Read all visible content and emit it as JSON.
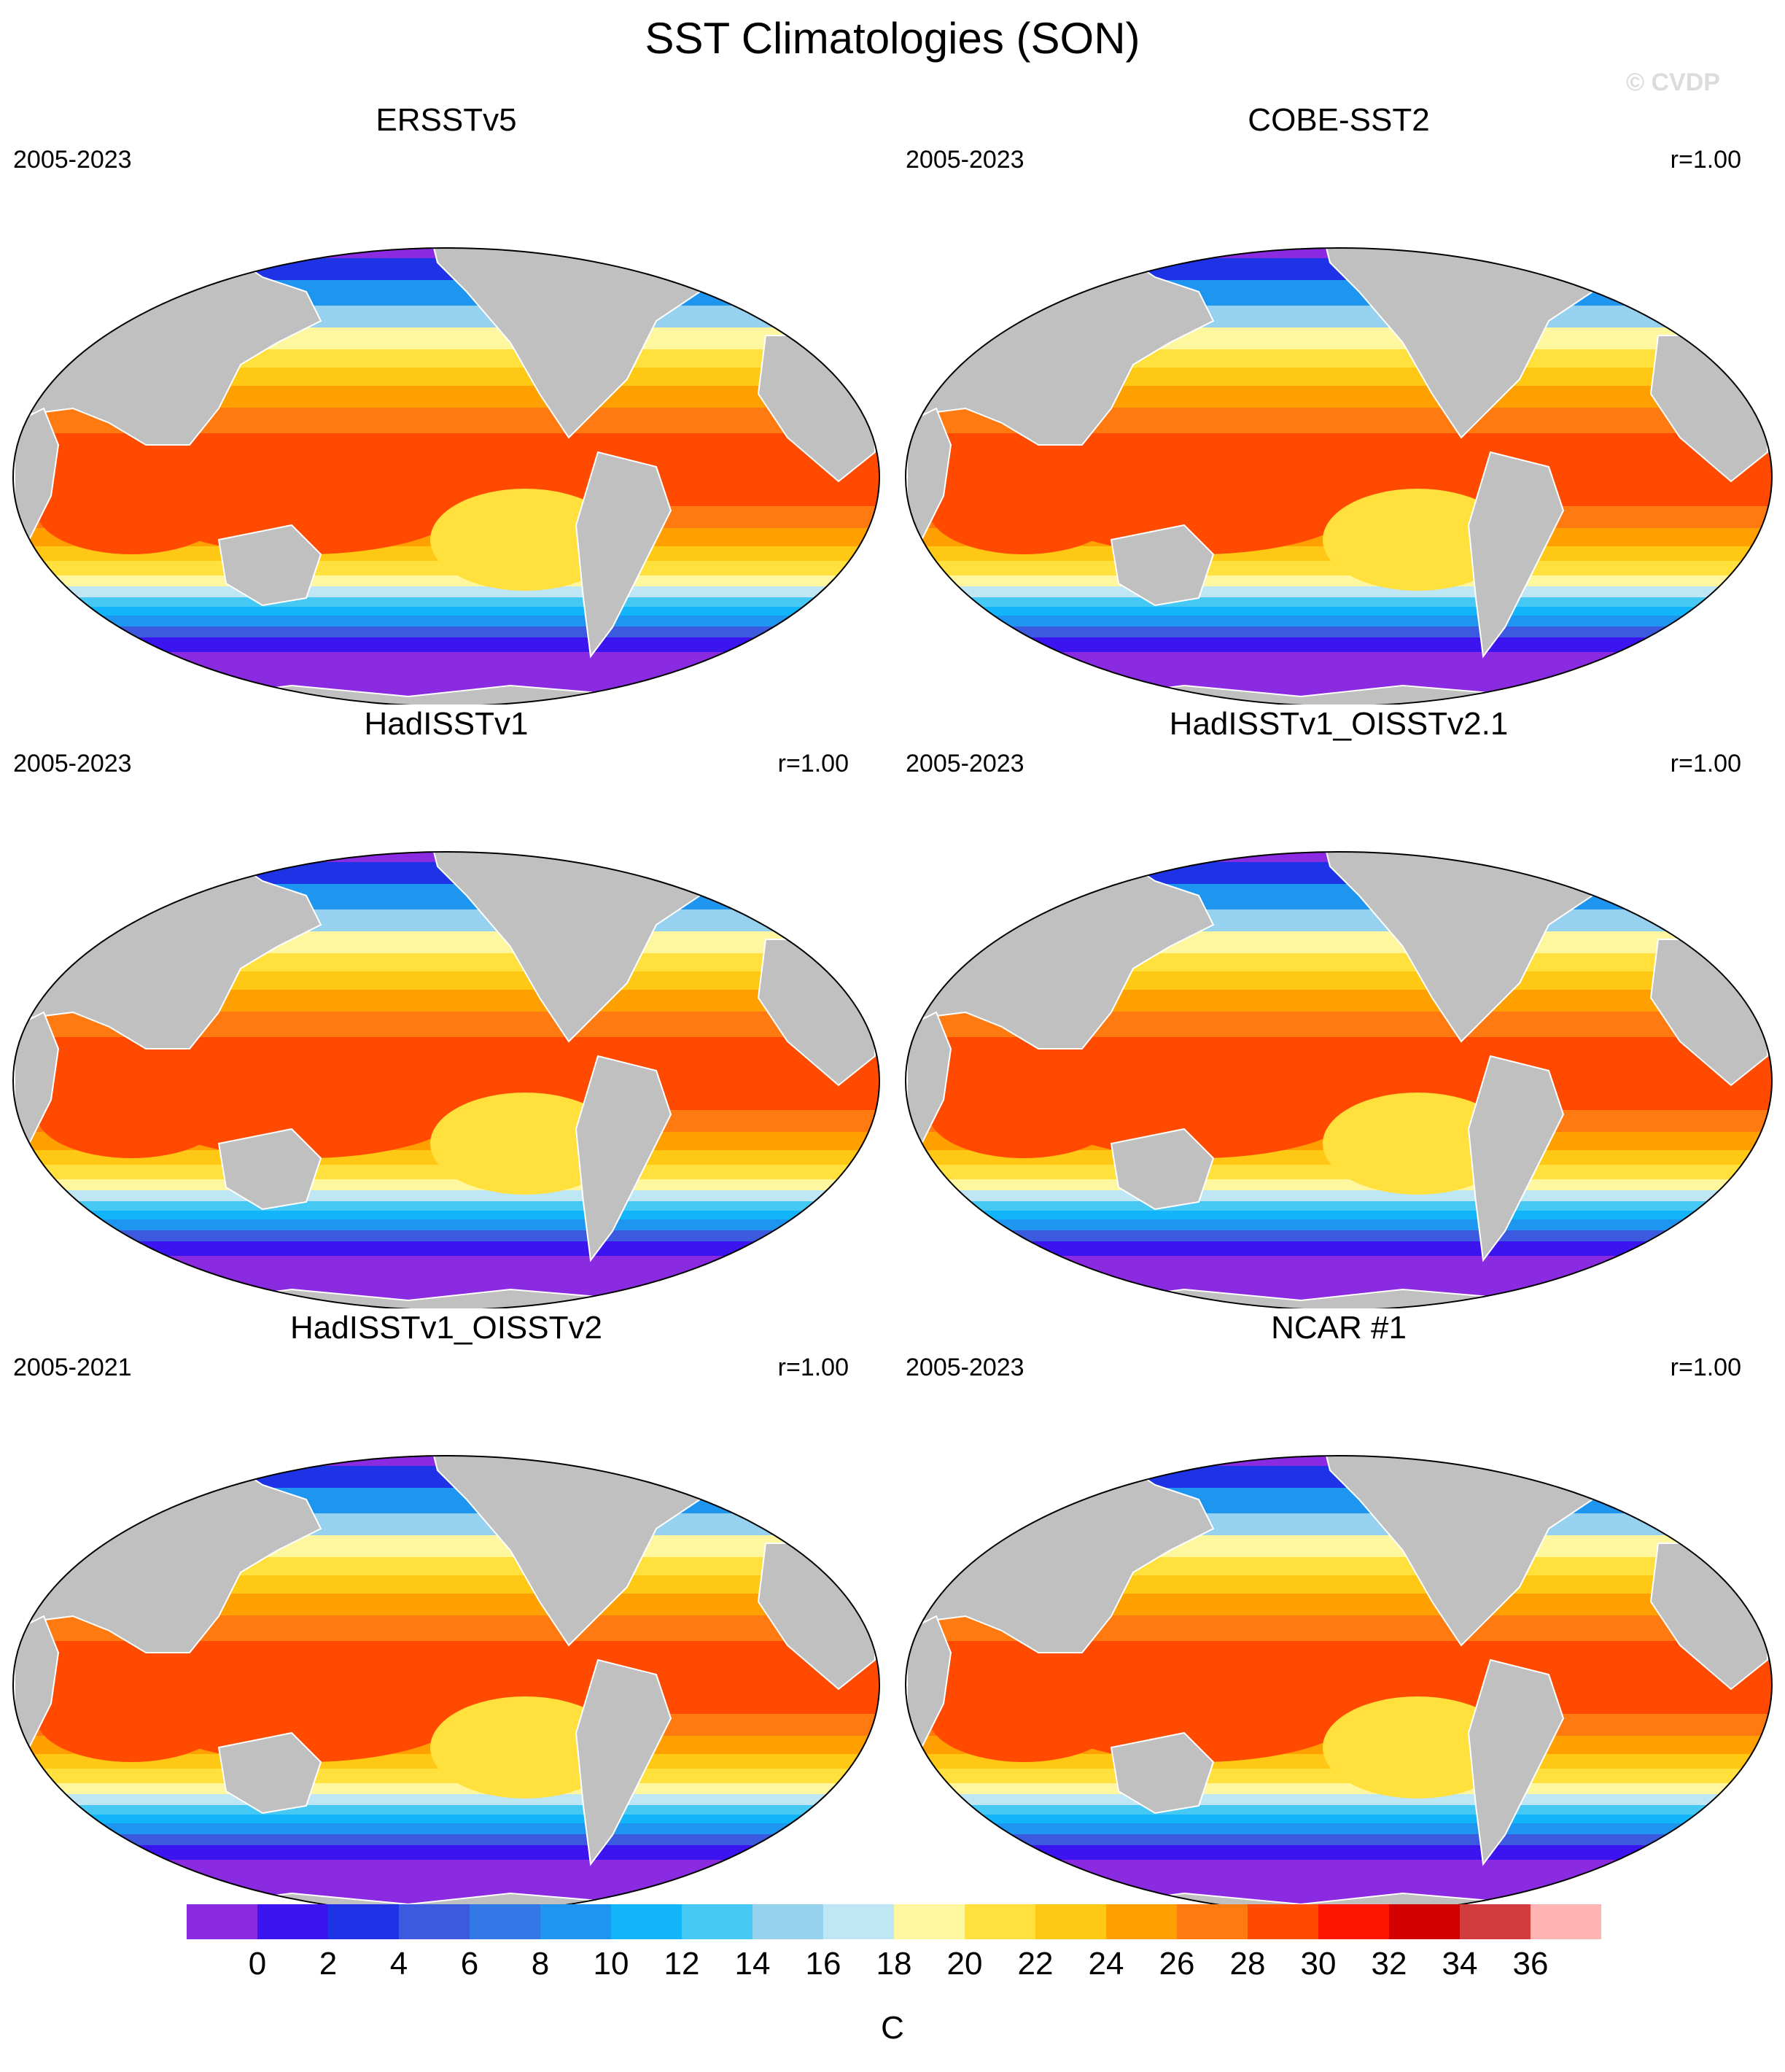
{
  "title": "SST Climatologies (SON)",
  "watermark": "© CVDP",
  "colors": {
    "land": "#c0c0c0",
    "ice_white": "#ffffff",
    "ocean_levels": [
      "#8a2be2",
      "#3c14f0",
      "#1e32e6",
      "#3c5ae0",
      "#3278e6",
      "#1e96f0",
      "#12b4fa",
      "#46c8f5",
      "#96d2f0",
      "#bee6f5",
      "#fff6a0",
      "#ffe03c",
      "#ffc814",
      "#ffa000",
      "#ff7a10",
      "#ff4a00",
      "#ff1400",
      "#d20000",
      "#d23c3c",
      "#ffb4b4"
    ]
  },
  "colorbar": {
    "tick_labels": [
      "0",
      "2",
      "4",
      "6",
      "8",
      "10",
      "12",
      "14",
      "16",
      "18",
      "20",
      "22",
      "24",
      "26",
      "28",
      "30",
      "32",
      "34",
      "36"
    ],
    "units": "C"
  },
  "panels": [
    {
      "name": "ERSSTv5",
      "years": "2005-2023",
      "r": ""
    },
    {
      "name": "COBE-SST2",
      "years": "2005-2023",
      "r": "r=1.00"
    },
    {
      "name": "HadISSTv1",
      "years": "2005-2023",
      "r": "r=1.00"
    },
    {
      "name": "HadISSTv1_OISSTv2.1",
      "years": "2005-2023",
      "r": "r=1.00"
    },
    {
      "name": "HadISSTv1_OISSTv2",
      "years": "2005-2021",
      "r": "r=1.00"
    },
    {
      "name": "NCAR #1",
      "years": "2005-2023",
      "r": "r=1.00"
    }
  ]
}
